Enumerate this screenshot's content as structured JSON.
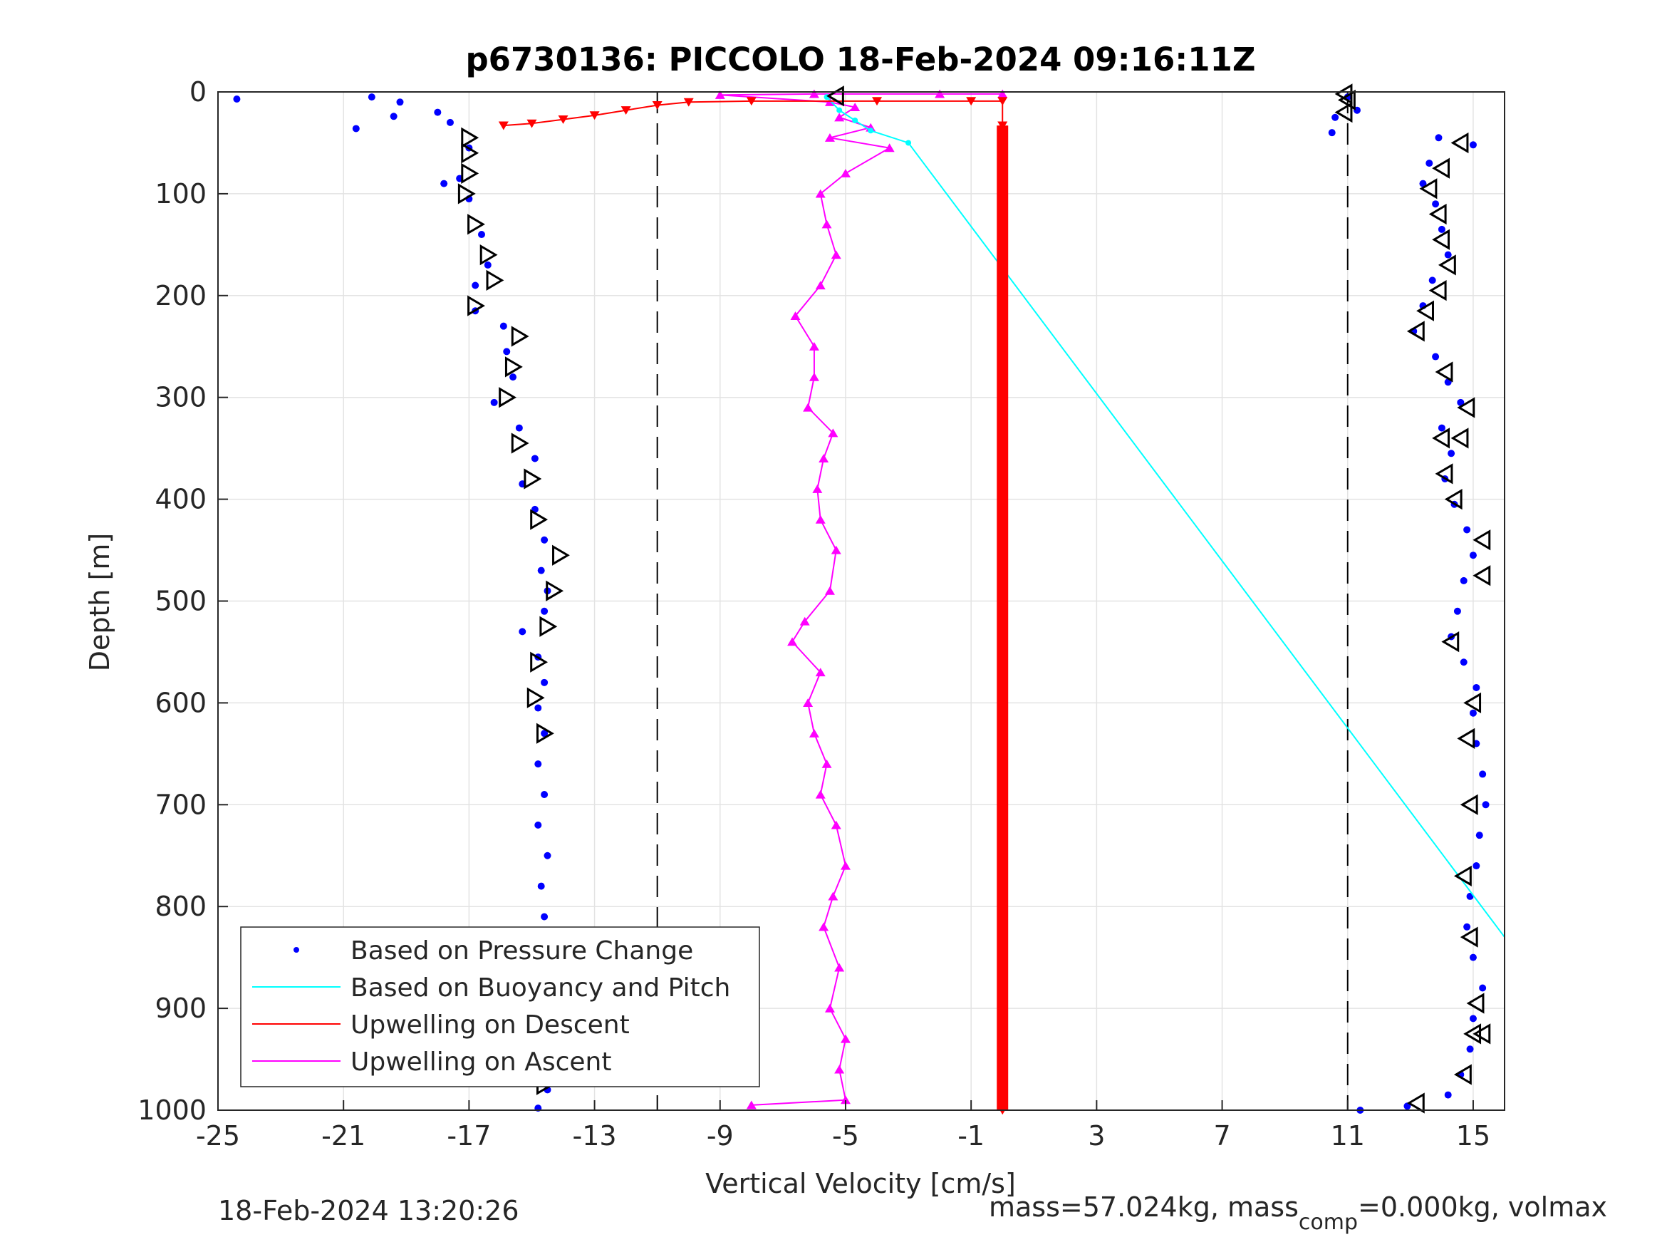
{
  "chart_data": {
    "type": "scatter",
    "title": "p6730136: PICCOLO 18-Feb-2024 09:16:11Z",
    "xlabel": "Vertical Velocity [cm/s]",
    "ylabel": "Depth [m]",
    "xlim": [
      -25,
      16
    ],
    "ylim": [
      0,
      1000
    ],
    "y_reversed": true,
    "grid": true,
    "x_ticks": [
      -25,
      -21,
      -17,
      -13,
      -9,
      -5,
      -1,
      3,
      7,
      11,
      15
    ],
    "x_tick_labels": [
      "-25",
      "-21",
      "-17",
      "-13",
      "-9",
      "-5",
      "-1",
      "3",
      "7",
      "11",
      "15"
    ],
    "y_ticks": [
      0,
      100,
      200,
      300,
      400,
      500,
      600,
      700,
      800,
      900,
      1000
    ],
    "y_tick_labels": [
      "0",
      "100",
      "200",
      "300",
      "400",
      "500",
      "600",
      "700",
      "800",
      "900",
      "1000"
    ],
    "reference_lines_x": [
      -11,
      11
    ],
    "legend_position": "lower-left",
    "series": [
      {
        "name": "Based on Pressure Change",
        "color": "#0000ff",
        "marker": "dot",
        "descent": [
          [
            -24.4,
            7
          ],
          [
            -20.1,
            5
          ],
          [
            -19.2,
            10
          ],
          [
            -20.6,
            36
          ],
          [
            -19.4,
            24
          ],
          [
            -18.0,
            20
          ],
          [
            -17.6,
            30
          ],
          [
            -17.0,
            55
          ],
          [
            -17.3,
            85
          ],
          [
            -17.8,
            90
          ],
          [
            -17.0,
            105
          ],
          [
            -16.6,
            140
          ],
          [
            -16.4,
            170
          ],
          [
            -16.8,
            190
          ],
          [
            -16.8,
            215
          ],
          [
            -15.9,
            230
          ],
          [
            -15.8,
            255
          ],
          [
            -15.6,
            280
          ],
          [
            -16.2,
            305
          ],
          [
            -15.4,
            330
          ],
          [
            -14.9,
            360
          ],
          [
            -15.3,
            385
          ],
          [
            -14.9,
            410
          ],
          [
            -14.6,
            440
          ],
          [
            -14.7,
            470
          ],
          [
            -14.5,
            490
          ],
          [
            -14.6,
            510
          ],
          [
            -15.3,
            530
          ],
          [
            -14.8,
            555
          ],
          [
            -14.6,
            580
          ],
          [
            -14.8,
            605
          ],
          [
            -14.6,
            630
          ],
          [
            -14.8,
            660
          ],
          [
            -14.6,
            690
          ],
          [
            -14.8,
            720
          ],
          [
            -14.5,
            750
          ],
          [
            -14.7,
            780
          ],
          [
            -14.6,
            810
          ],
          [
            -14.3,
            840
          ],
          [
            -14.6,
            870
          ],
          [
            -14.4,
            900
          ],
          [
            -14.7,
            930
          ],
          [
            -14.3,
            955
          ],
          [
            -14.5,
            980
          ],
          [
            -14.8,
            998
          ]
        ],
        "ascent": [
          [
            11.0,
            5
          ],
          [
            10.6,
            25
          ],
          [
            11.3,
            18
          ],
          [
            10.5,
            40
          ],
          [
            13.9,
            45
          ],
          [
            15.0,
            52
          ],
          [
            13.6,
            70
          ],
          [
            13.4,
            90
          ],
          [
            13.8,
            110
          ],
          [
            14.0,
            135
          ],
          [
            14.2,
            160
          ],
          [
            13.7,
            185
          ],
          [
            13.4,
            210
          ],
          [
            13.1,
            235
          ],
          [
            13.8,
            260
          ],
          [
            14.2,
            285
          ],
          [
            14.6,
            305
          ],
          [
            14.0,
            330
          ],
          [
            14.3,
            355
          ],
          [
            14.1,
            380
          ],
          [
            14.4,
            405
          ],
          [
            14.8,
            430
          ],
          [
            15.0,
            455
          ],
          [
            14.7,
            480
          ],
          [
            14.5,
            510
          ],
          [
            14.3,
            535
          ],
          [
            14.7,
            560
          ],
          [
            15.1,
            585
          ],
          [
            15.0,
            610
          ],
          [
            15.1,
            640
          ],
          [
            15.3,
            670
          ],
          [
            15.4,
            700
          ],
          [
            15.2,
            730
          ],
          [
            15.1,
            760
          ],
          [
            14.9,
            790
          ],
          [
            14.8,
            820
          ],
          [
            15.0,
            850
          ],
          [
            15.3,
            880
          ],
          [
            15.0,
            910
          ],
          [
            14.9,
            940
          ],
          [
            14.6,
            965
          ],
          [
            14.2,
            985
          ],
          [
            12.9,
            996
          ],
          [
            11.4,
            1000
          ]
        ]
      },
      {
        "name": "Based on Buoyancy and Pitch",
        "color": "#00ffff",
        "marker": "line",
        "points": [
          [
            -5.6,
            5
          ],
          [
            -5.2,
            18
          ],
          [
            -4.7,
            28
          ],
          [
            -4.2,
            38
          ],
          [
            -3.0,
            50
          ],
          [
            16.0,
            830
          ]
        ]
      },
      {
        "name": "Upwelling on Descent",
        "color": "#ff0000",
        "marker": "triangle-down",
        "points": [
          [
            -15.9,
            33
          ],
          [
            -15.0,
            31
          ],
          [
            -14.0,
            27
          ],
          [
            -13.0,
            23
          ],
          [
            -12.0,
            18
          ],
          [
            -11.0,
            13
          ],
          [
            -10.0,
            10
          ],
          [
            -8.0,
            9
          ],
          [
            -4.0,
            9
          ],
          [
            -1.0,
            9
          ],
          [
            0.0,
            9
          ],
          [
            0.0,
            33
          ],
          [
            0.0,
            1000
          ]
        ]
      },
      {
        "name": "Upwelling on Ascent",
        "color": "#ff00ff",
        "marker": "triangle-up",
        "points": [
          [
            -8.0,
            995
          ],
          [
            -5.0,
            990
          ],
          [
            -5.2,
            960
          ],
          [
            -5.0,
            930
          ],
          [
            -5.5,
            900
          ],
          [
            -5.2,
            860
          ],
          [
            -5.7,
            820
          ],
          [
            -5.4,
            790
          ],
          [
            -5.0,
            760
          ],
          [
            -5.3,
            720
          ],
          [
            -5.8,
            690
          ],
          [
            -5.6,
            660
          ],
          [
            -6.0,
            630
          ],
          [
            -6.2,
            600
          ],
          [
            -5.8,
            570
          ],
          [
            -6.7,
            540
          ],
          [
            -6.3,
            520
          ],
          [
            -5.5,
            490
          ],
          [
            -5.3,
            450
          ],
          [
            -5.8,
            420
          ],
          [
            -5.9,
            390
          ],
          [
            -5.7,
            360
          ],
          [
            -5.4,
            335
          ],
          [
            -6.2,
            310
          ],
          [
            -6.0,
            280
          ],
          [
            -6.0,
            250
          ],
          [
            -6.6,
            220
          ],
          [
            -5.8,
            190
          ],
          [
            -5.3,
            160
          ],
          [
            -5.6,
            130
          ],
          [
            -5.8,
            100
          ],
          [
            -5.0,
            80
          ],
          [
            -3.6,
            55
          ],
          [
            -5.5,
            45
          ],
          [
            -4.2,
            35
          ],
          [
            -5.2,
            25
          ],
          [
            -4.7,
            15
          ],
          [
            -5.5,
            10
          ],
          [
            -9.0,
            3
          ],
          [
            -6.0,
            2
          ],
          [
            -2.0,
            2
          ],
          [
            0.0,
            2
          ]
        ]
      },
      {
        "name": "",
        "color": "#000000",
        "marker": "triangle-open",
        "descent": [
          [
            -17.0,
            45
          ],
          [
            -17.0,
            60
          ],
          [
            -17.0,
            80
          ],
          [
            -17.1,
            100
          ],
          [
            -16.8,
            130
          ],
          [
            -16.4,
            160
          ],
          [
            -16.2,
            185
          ],
          [
            -16.8,
            210
          ],
          [
            -15.4,
            240
          ],
          [
            -15.6,
            270
          ],
          [
            -15.8,
            300
          ],
          [
            -15.4,
            345
          ],
          [
            -15.0,
            380
          ],
          [
            -14.8,
            420
          ],
          [
            -14.1,
            455
          ],
          [
            -14.3,
            490
          ],
          [
            -14.5,
            525
          ],
          [
            -14.8,
            560
          ],
          [
            -14.9,
            595
          ],
          [
            -14.6,
            630
          ],
          [
            -14.6,
            835
          ],
          [
            -14.1,
            875
          ],
          [
            -14.5,
            910
          ],
          [
            -14.6,
            940
          ],
          [
            -14.6,
            975
          ]
        ],
        "ascent": [
          [
            -5.3,
            4
          ],
          [
            10.9,
            2
          ],
          [
            11.0,
            8
          ],
          [
            10.9,
            20
          ],
          [
            14.6,
            50
          ],
          [
            14.0,
            75
          ],
          [
            13.6,
            95
          ],
          [
            13.9,
            120
          ],
          [
            14.0,
            145
          ],
          [
            14.2,
            170
          ],
          [
            13.9,
            195
          ],
          [
            13.5,
            215
          ],
          [
            13.2,
            235
          ],
          [
            14.1,
            275
          ],
          [
            14.8,
            310
          ],
          [
            14.0,
            340
          ],
          [
            14.6,
            340
          ],
          [
            14.1,
            375
          ],
          [
            14.4,
            400
          ],
          [
            15.3,
            440
          ],
          [
            15.3,
            475
          ],
          [
            14.3,
            540
          ],
          [
            15.0,
            600
          ],
          [
            14.8,
            635
          ],
          [
            14.9,
            700
          ],
          [
            14.7,
            770
          ],
          [
            14.9,
            830
          ],
          [
            15.1,
            895
          ],
          [
            15.0,
            925
          ],
          [
            15.3,
            925
          ],
          [
            14.7,
            965
          ],
          [
            13.2,
            993
          ]
        ]
      }
    ],
    "annotations": [
      "18-Feb-2024 13:20:26",
      "mass=57.024kg, mass",
      "comp",
      "=0.000kg, volmax"
    ]
  }
}
